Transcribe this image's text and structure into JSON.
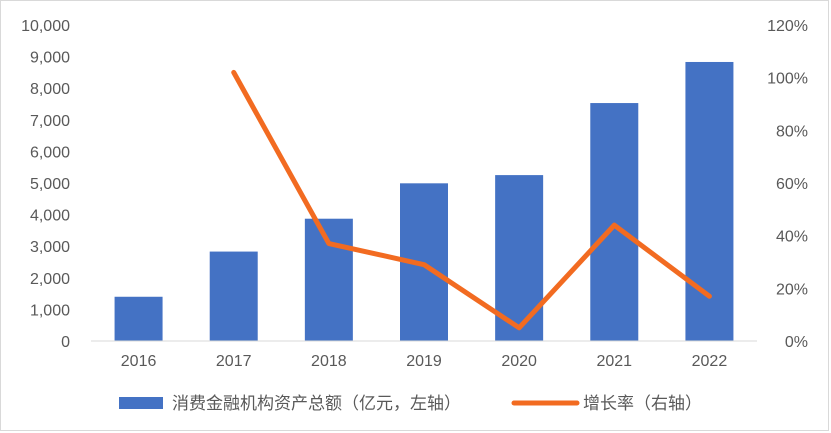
{
  "chart_data": {
    "type": "bar+line",
    "categories": [
      "2016",
      "2017",
      "2018",
      "2019",
      "2020",
      "2021",
      "2022"
    ],
    "series": [
      {
        "name": "消费金融机构资产总额（亿元，左轴）",
        "type": "bar",
        "axis": "left",
        "color": "#4472C4",
        "values": [
          1400,
          2830,
          3870,
          4990,
          5250,
          7530,
          8830
        ]
      },
      {
        "name": "增长率（右轴）",
        "type": "line",
        "axis": "right",
        "color": "#F26B21",
        "values": [
          null,
          1.02,
          0.37,
          0.29,
          0.05,
          0.44,
          0.17
        ]
      }
    ],
    "y_left": {
      "lim": [
        0,
        10000
      ],
      "ticks": [
        0,
        1000,
        2000,
        3000,
        4000,
        5000,
        6000,
        7000,
        8000,
        9000,
        10000
      ],
      "tick_labels": [
        "0",
        "1,000",
        "2,000",
        "3,000",
        "4,000",
        "5,000",
        "6,000",
        "7,000",
        "8,000",
        "9,000",
        "10,000"
      ]
    },
    "y_right": {
      "lim": [
        0,
        1.2
      ],
      "ticks": [
        0,
        0.2,
        0.4,
        0.6,
        0.8,
        1.0,
        1.2
      ],
      "tick_labels": [
        "0%",
        "20%",
        "40%",
        "60%",
        "80%",
        "100%",
        "120%"
      ]
    },
    "grid": false,
    "legend": "bottom"
  }
}
